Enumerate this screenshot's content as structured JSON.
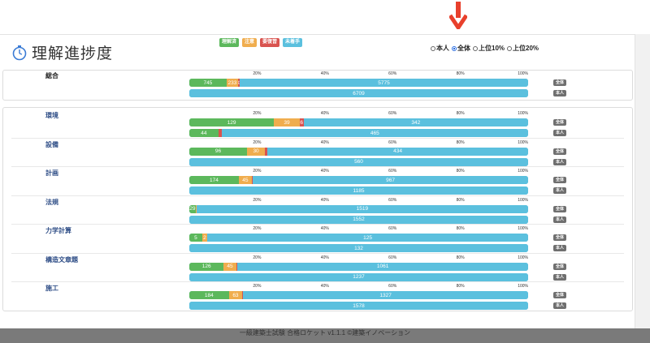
{
  "page": {
    "title": "理解進捗度",
    "footer": "一級建築士試験 合格ロケット v1.1.1 ©建築イノベーション"
  },
  "legend": [
    {
      "label": "理解済",
      "color": "#5cb85c"
    },
    {
      "label": "注意",
      "color": "#f0ad4e"
    },
    {
      "label": "要復習",
      "color": "#d9534f"
    },
    {
      "label": "未着手",
      "color": "#5bc0de"
    }
  ],
  "filter": {
    "options": [
      {
        "label": "本人",
        "selected": false
      },
      {
        "label": "全体",
        "selected": true
      },
      {
        "label": "上位10%",
        "selected": false
      },
      {
        "label": "上位20%",
        "selected": false
      }
    ]
  },
  "axis_ticks": [
    "20%",
    "40%",
    "60%",
    "80%",
    "100%"
  ],
  "tags": {
    "all": "全体",
    "self": "本人"
  },
  "overall": {
    "name": "総合",
    "all": [
      745,
      233,
      33,
      5775
    ],
    "all_labels": [
      "745",
      "233",
      "33",
      "5775"
    ],
    "self": [
      0,
      0,
      0,
      6709
    ],
    "self_labels": [
      "",
      "",
      "",
      "6709"
    ]
  },
  "subjects": [
    {
      "name": "環境",
      "all": [
        129,
        39,
        6,
        342
      ],
      "all_labels": [
        "129",
        "39",
        "6",
        "342"
      ],
      "self": [
        44,
        0,
        5,
        465
      ],
      "self_labels": [
        "44",
        "",
        "",
        "465"
      ]
    },
    {
      "name": "設備",
      "all": [
        96,
        30,
        4,
        434
      ],
      "all_labels": [
        "96",
        "30",
        "",
        "434"
      ],
      "self": [
        0,
        0,
        0,
        560
      ],
      "self_labels": [
        "",
        "",
        "",
        "560"
      ]
    },
    {
      "name": "計画",
      "all": [
        174,
        45,
        4,
        967
      ],
      "all_labels": [
        "174",
        "45",
        "",
        "967"
      ],
      "self": [
        0,
        0,
        0,
        1185
      ],
      "self_labels": [
        "",
        "",
        "",
        "1185"
      ]
    },
    {
      "name": "法規",
      "all": [
        29,
        4,
        0,
        1519
      ],
      "all_labels": [
        "29",
        "",
        "",
        "1519"
      ],
      "self": [
        0,
        0,
        0,
        1552
      ],
      "self_labels": [
        "",
        "",
        "",
        "1552"
      ]
    },
    {
      "name": "力学計算",
      "all": [
        5,
        2,
        0,
        125
      ],
      "all_labels": [
        "5",
        "2",
        "",
        "125"
      ],
      "self": [
        0,
        0,
        0,
        132
      ],
      "self_labels": [
        "",
        "",
        "",
        "132"
      ]
    },
    {
      "name": "構造文章題",
      "all": [
        126,
        45,
        5,
        1061
      ],
      "all_labels": [
        "126",
        "45",
        "",
        "1061"
      ],
      "self": [
        0,
        0,
        0,
        1237
      ],
      "self_labels": [
        "",
        "",
        "",
        "1237"
      ]
    },
    {
      "name": "施工",
      "all": [
        184,
        63,
        4,
        1327
      ],
      "all_labels": [
        "184",
        "63",
        "",
        "1327"
      ],
      "self": [
        0,
        0,
        0,
        1578
      ],
      "self_labels": [
        "",
        "",
        "",
        "1578"
      ]
    }
  ]
}
